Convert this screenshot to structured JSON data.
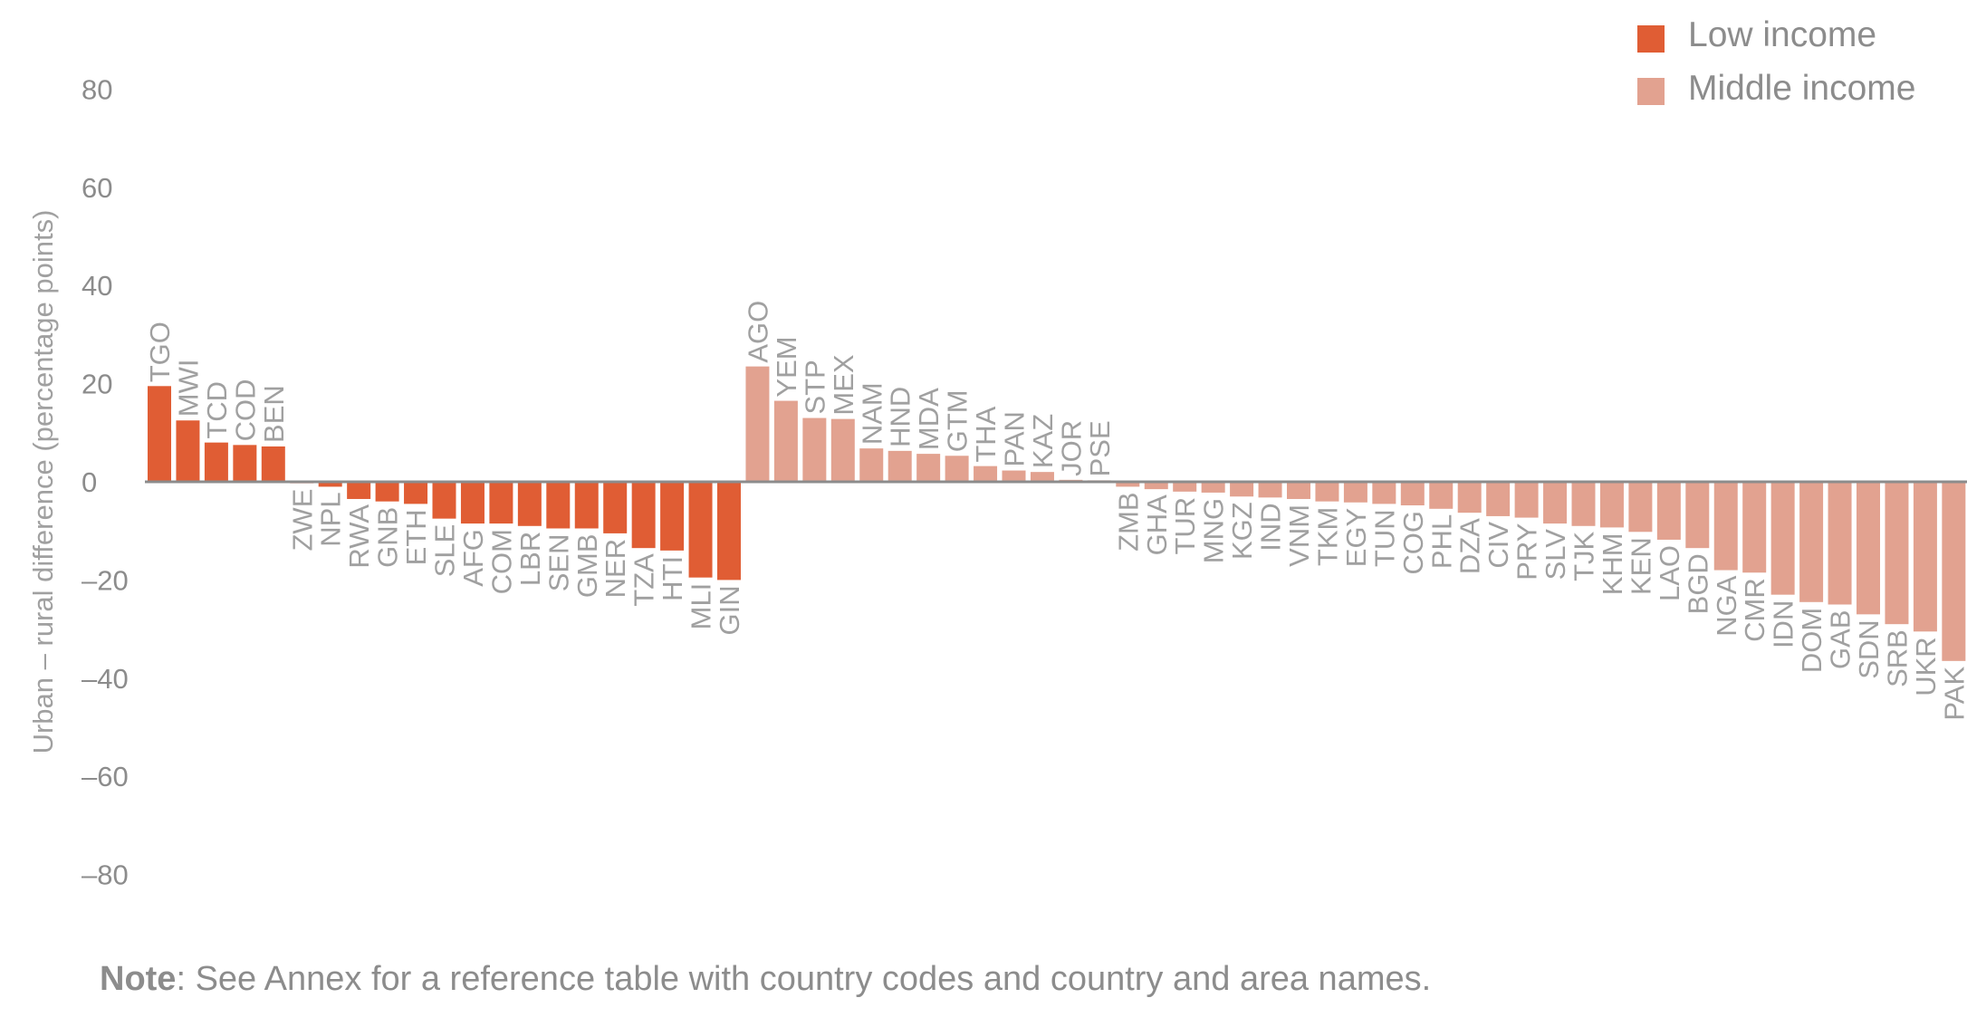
{
  "chart_data": {
    "type": "bar",
    "ylabel": "Urban – rural difference (percentage points)",
    "ylim": [
      -80,
      80
    ],
    "yticks": [
      "80",
      "60",
      "40",
      "20",
      "0",
      "–20",
      "–40",
      "–60",
      "–80"
    ],
    "ytick_values": [
      80,
      60,
      40,
      20,
      0,
      -20,
      -40,
      -60,
      -80
    ],
    "colors": {
      "low": "#e05d34",
      "middle": "#e2a290",
      "axis": "#8c8c8c"
    },
    "legend": {
      "position": "top-right",
      "low_label": "Low income",
      "middle_label": "Middle income"
    },
    "bars": [
      {
        "c": "TGO",
        "v": 19.5,
        "g": "low"
      },
      {
        "c": "MWI",
        "v": 12.5,
        "g": "low"
      },
      {
        "c": "TCD",
        "v": 8,
        "g": "low"
      },
      {
        "c": "COD",
        "v": 7.5,
        "g": "low"
      },
      {
        "c": "BEN",
        "v": 7.2,
        "g": "low"
      },
      {
        "c": "ZWE",
        "v": -0.3,
        "g": "low"
      },
      {
        "c": "NPL",
        "v": -1,
        "g": "low"
      },
      {
        "c": "RWA",
        "v": -3.5,
        "g": "low"
      },
      {
        "c": "GNB",
        "v": -4,
        "g": "low"
      },
      {
        "c": "ETH",
        "v": -4.5,
        "g": "low"
      },
      {
        "c": "SLE",
        "v": -7.5,
        "g": "low"
      },
      {
        "c": "AFG",
        "v": -8.5,
        "g": "low"
      },
      {
        "c": "COM",
        "v": -8.5,
        "g": "low"
      },
      {
        "c": "LBR",
        "v": -9,
        "g": "low"
      },
      {
        "c": "SEN",
        "v": -9.5,
        "g": "low"
      },
      {
        "c": "GMB",
        "v": -9.5,
        "g": "low"
      },
      {
        "c": "NER",
        "v": -10.5,
        "g": "low"
      },
      {
        "c": "TZA",
        "v": -13.5,
        "g": "low"
      },
      {
        "c": "HTI",
        "v": -14,
        "g": "low"
      },
      {
        "c": "MLI",
        "v": -19.5,
        "g": "low"
      },
      {
        "c": "GIN",
        "v": -20,
        "g": "low"
      },
      {
        "c": "AGO",
        "v": 23.5,
        "g": "middle"
      },
      {
        "c": "YEM",
        "v": 16.5,
        "g": "middle"
      },
      {
        "c": "STP",
        "v": 13,
        "g": "middle"
      },
      {
        "c": "MEX",
        "v": 12.8,
        "g": "middle"
      },
      {
        "c": "NAM",
        "v": 6.8,
        "g": "middle"
      },
      {
        "c": "HND",
        "v": 6.3,
        "g": "middle"
      },
      {
        "c": "MDA",
        "v": 5.7,
        "g": "middle"
      },
      {
        "c": "GTM",
        "v": 5.3,
        "g": "middle"
      },
      {
        "c": "THA",
        "v": 3.2,
        "g": "middle"
      },
      {
        "c": "PAN",
        "v": 2.3,
        "g": "middle"
      },
      {
        "c": "KAZ",
        "v": 2,
        "g": "middle"
      },
      {
        "c": "JOR",
        "v": 0.4,
        "g": "middle"
      },
      {
        "c": "PSE",
        "v": 0.3,
        "g": "middle"
      },
      {
        "c": "ZMB",
        "v": -1,
        "g": "middle"
      },
      {
        "c": "GHA",
        "v": -1.5,
        "g": "middle"
      },
      {
        "c": "TUR",
        "v": -2,
        "g": "middle"
      },
      {
        "c": "MNG",
        "v": -2.2,
        "g": "middle"
      },
      {
        "c": "KGZ",
        "v": -3,
        "g": "middle"
      },
      {
        "c": "IND",
        "v": -3.2,
        "g": "middle"
      },
      {
        "c": "VNM",
        "v": -3.5,
        "g": "middle"
      },
      {
        "c": "TKM",
        "v": -4,
        "g": "middle"
      },
      {
        "c": "EGY",
        "v": -4.2,
        "g": "middle"
      },
      {
        "c": "TUN",
        "v": -4.5,
        "g": "middle"
      },
      {
        "c": "COG",
        "v": -4.8,
        "g": "middle"
      },
      {
        "c": "PHL",
        "v": -5.5,
        "g": "middle"
      },
      {
        "c": "DZA",
        "v": -6.3,
        "g": "middle"
      },
      {
        "c": "CIV",
        "v": -7,
        "g": "middle"
      },
      {
        "c": "PRY",
        "v": -7.3,
        "g": "middle"
      },
      {
        "c": "SLV",
        "v": -8.5,
        "g": "middle"
      },
      {
        "c": "TJK",
        "v": -9,
        "g": "middle"
      },
      {
        "c": "KHM",
        "v": -9.3,
        "g": "middle"
      },
      {
        "c": "KEN",
        "v": -10.2,
        "g": "middle"
      },
      {
        "c": "LAO",
        "v": -11.8,
        "g": "middle"
      },
      {
        "c": "BGD",
        "v": -13.5,
        "g": "middle"
      },
      {
        "c": "NGA",
        "v": -18,
        "g": "middle"
      },
      {
        "c": "CMR",
        "v": -18.5,
        "g": "middle"
      },
      {
        "c": "IDN",
        "v": -23,
        "g": "middle"
      },
      {
        "c": "DOM",
        "v": -24.5,
        "g": "middle"
      },
      {
        "c": "GAB",
        "v": -25,
        "g": "middle"
      },
      {
        "c": "SDN",
        "v": -27,
        "g": "middle"
      },
      {
        "c": "SRB",
        "v": -29,
        "g": "middle"
      },
      {
        "c": "UKR",
        "v": -30.5,
        "g": "middle"
      },
      {
        "c": "PAK",
        "v": -36.5,
        "g": "middle"
      }
    ]
  },
  "note": {
    "label": "Note",
    "text": ": See Annex for a reference table with country codes and country and area names."
  }
}
